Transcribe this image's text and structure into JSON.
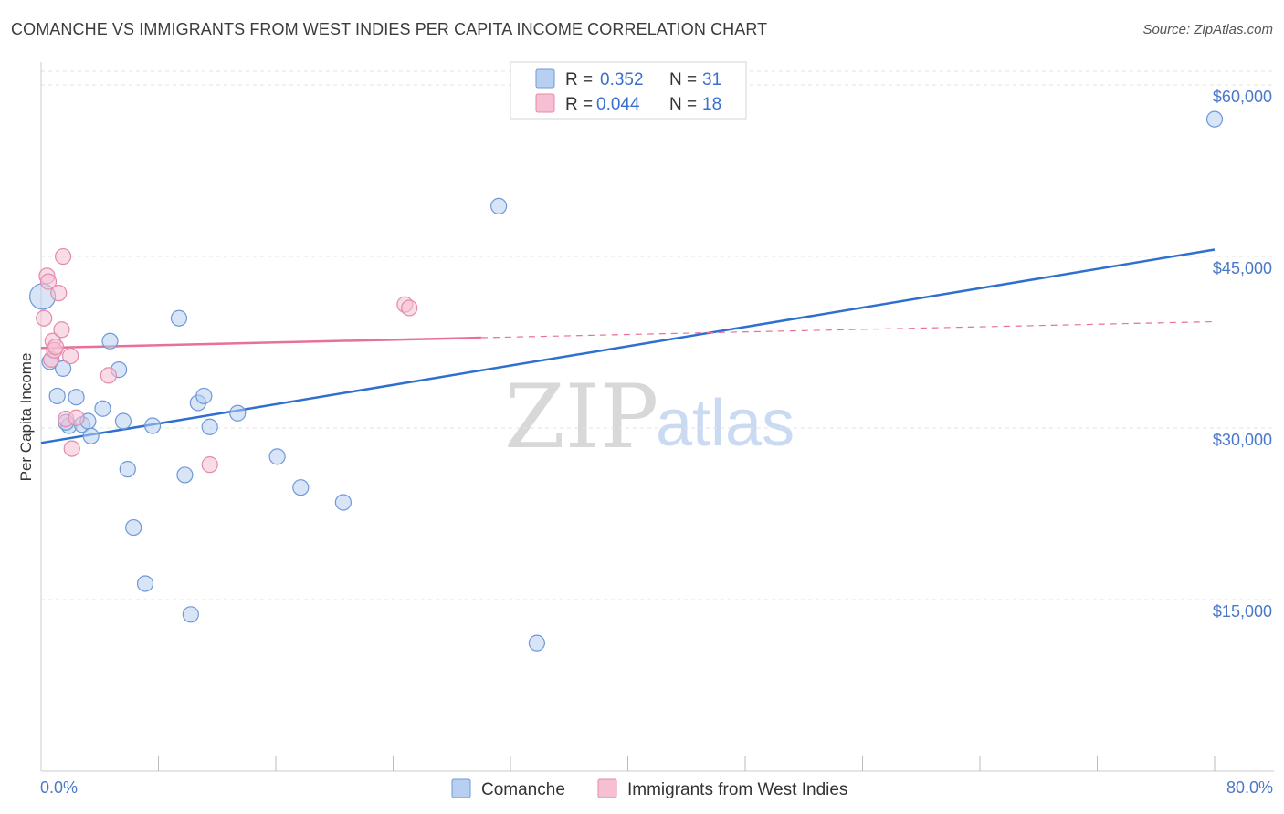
{
  "title": "COMANCHE VS IMMIGRANTS FROM WEST INDIES PER CAPITA INCOME CORRELATION CHART",
  "source": "Source: ZipAtlas.com",
  "watermark": {
    "zip": "ZIP",
    "atlas": "atlas"
  },
  "colors": {
    "blue": "#4a84d8",
    "blue_fill": "#b7cff1",
    "pink": "#e8709a",
    "pink_fill": "#f6bfd3",
    "grid": "#e3e3e3",
    "axis": "#cccccc",
    "tick_text": "#4a78c8"
  },
  "legend": {
    "series": [
      {
        "r_label": "R =",
        "r_value": "0.352",
        "n_label": "N =",
        "n_value": "31"
      },
      {
        "r_label": "R =",
        "r_value": "0.044",
        "n_label": "N =",
        "n_value": "18"
      }
    ]
  },
  "chart_data": {
    "type": "scatter",
    "title": "COMANCHE VS IMMIGRANTS FROM WEST INDIES PER CAPITA INCOME CORRELATION CHART",
    "xlabel": "",
    "ylabel": "Per Capita Income",
    "xlim": [
      0,
      80
    ],
    "ylim": [
      0,
      62000
    ],
    "x_tick_labels": {
      "min": "0.0%",
      "max": "80.0%"
    },
    "y_ticks": [
      {
        "value": 15000,
        "label": "$15,000"
      },
      {
        "value": 30000,
        "label": "$30,000"
      },
      {
        "value": 45000,
        "label": "$45,000"
      },
      {
        "value": 60000,
        "label": "$60,000"
      }
    ],
    "series": [
      {
        "name": "Comanche",
        "color": "#4a84d8",
        "points": [
          {
            "x": 0.1,
            "y": 41500
          },
          {
            "x": 0.6,
            "y": 35800
          },
          {
            "x": 1.1,
            "y": 32800
          },
          {
            "x": 1.5,
            "y": 35200
          },
          {
            "x": 1.9,
            "y": 30200
          },
          {
            "x": 2.4,
            "y": 32700
          },
          {
            "x": 2.8,
            "y": 30300
          },
          {
            "x": 3.2,
            "y": 30600
          },
          {
            "x": 3.4,
            "y": 29300
          },
          {
            "x": 4.2,
            "y": 31700
          },
          {
            "x": 4.7,
            "y": 37600
          },
          {
            "x": 5.3,
            "y": 35100
          },
          {
            "x": 5.6,
            "y": 30600
          },
          {
            "x": 5.9,
            "y": 26400
          },
          {
            "x": 6.3,
            "y": 21300
          },
          {
            "x": 7.1,
            "y": 16400
          },
          {
            "x": 7.6,
            "y": 30200
          },
          {
            "x": 9.4,
            "y": 39600
          },
          {
            "x": 9.8,
            "y": 25900
          },
          {
            "x": 10.2,
            "y": 13700
          },
          {
            "x": 10.7,
            "y": 32200
          },
          {
            "x": 11.1,
            "y": 32800
          },
          {
            "x": 11.5,
            "y": 30100
          },
          {
            "x": 13.4,
            "y": 31300
          },
          {
            "x": 16.1,
            "y": 27500
          },
          {
            "x": 17.7,
            "y": 24800
          },
          {
            "x": 20.6,
            "y": 23500
          },
          {
            "x": 31.2,
            "y": 49400
          },
          {
            "x": 33.8,
            "y": 11200
          },
          {
            "x": 80.0,
            "y": 57000
          },
          {
            "x": 1.7,
            "y": 30500
          }
        ],
        "trend": {
          "x0": 0,
          "y0": 28700,
          "x1": 80,
          "y1": 45600
        }
      },
      {
        "name": "Immigrants from West Indies",
        "color": "#e8709a",
        "points": [
          {
            "x": 0.2,
            "y": 39600
          },
          {
            "x": 0.4,
            "y": 43300
          },
          {
            "x": 0.5,
            "y": 42800
          },
          {
            "x": 0.7,
            "y": 36000
          },
          {
            "x": 0.8,
            "y": 37600
          },
          {
            "x": 0.9,
            "y": 36800
          },
          {
            "x": 1.0,
            "y": 37100
          },
          {
            "x": 1.2,
            "y": 41800
          },
          {
            "x": 1.4,
            "y": 38600
          },
          {
            "x": 1.5,
            "y": 45000
          },
          {
            "x": 1.7,
            "y": 30800
          },
          {
            "x": 2.0,
            "y": 36300
          },
          {
            "x": 2.1,
            "y": 28200
          },
          {
            "x": 2.4,
            "y": 30900
          },
          {
            "x": 4.6,
            "y": 34600
          },
          {
            "x": 11.5,
            "y": 26800
          },
          {
            "x": 24.8,
            "y": 40800
          },
          {
            "x": 25.1,
            "y": 40500
          }
        ],
        "trend": {
          "x0": 0,
          "y0": 37000,
          "x1": 30,
          "y1": 37900,
          "dash_x1": 80,
          "dash_y1": 39300
        }
      }
    ]
  },
  "bottom_legend": [
    {
      "label": "Comanche"
    },
    {
      "label": "Immigrants from West Indies"
    }
  ]
}
